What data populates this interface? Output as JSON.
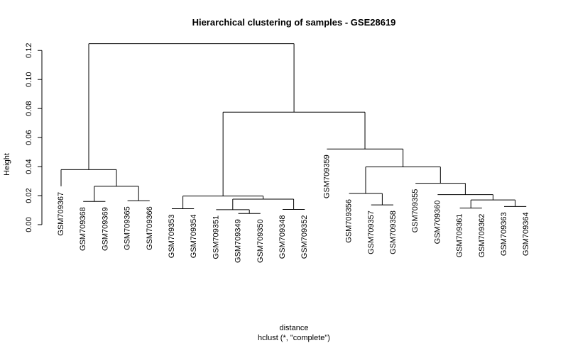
{
  "chart_data": {
    "type": "dendrogram",
    "title": "Hierarchical clustering of samples - GSE28619",
    "ylabel": "Height",
    "xlabel": "distance",
    "sublabel": "hclust (*, \"complete\")",
    "ylim": [
      0,
      0.13
    ],
    "yticks": [
      0.0,
      0.02,
      0.04,
      0.06,
      0.08,
      0.1,
      0.12
    ],
    "ytick_labels": [
      "0.00",
      "0.02",
      "0.04",
      "0.06",
      "0.08",
      "0.10",
      "0.12"
    ],
    "leaves": [
      "GSM709367",
      "GSM709368",
      "GSM709369",
      "GSM709365",
      "GSM709366",
      "GSM709353",
      "GSM709354",
      "GSM709351",
      "GSM709349",
      "GSM709350",
      "GSM709348",
      "GSM709352",
      "GSM709359",
      "GSM709356",
      "GSM709357",
      "GSM709358",
      "GSM709355",
      "GSM709360",
      "GSM709361",
      "GSM709362",
      "GSM709363",
      "GSM709364"
    ],
    "leaf_heights": [
      0.0264,
      0.016,
      0.016,
      0.0165,
      0.0165,
      0.011,
      0.011,
      0.0103,
      0.0077,
      0.0077,
      0.0105,
      0.0105,
      0.0521,
      0.0215,
      0.0136,
      0.0136,
      0.0285,
      0.0207,
      0.0114,
      0.0114,
      0.0125,
      0.0125
    ],
    "merges": [
      {
        "height": 0.016,
        "children": [
          "leaf:1",
          "leaf:2"
        ]
      },
      {
        "height": 0.0165,
        "children": [
          "leaf:3",
          "leaf:4"
        ]
      },
      {
        "height": 0.0264,
        "children": [
          "merge:0",
          "merge:1"
        ]
      },
      {
        "height": 0.0379,
        "children": [
          "leaf:0",
          "merge:2"
        ]
      },
      {
        "height": 0.011,
        "children": [
          "leaf:5",
          "leaf:6"
        ]
      },
      {
        "height": 0.0077,
        "children": [
          "leaf:8",
          "leaf:9"
        ]
      },
      {
        "height": 0.0103,
        "children": [
          "leaf:7",
          "merge:5"
        ]
      },
      {
        "height": 0.0105,
        "children": [
          "leaf:10",
          "leaf:11"
        ]
      },
      {
        "height": 0.0176,
        "children": [
          "merge:6",
          "merge:7"
        ]
      },
      {
        "height": 0.0197,
        "children": [
          "merge:4",
          "merge:8"
        ]
      },
      {
        "height": 0.0136,
        "children": [
          "leaf:14",
          "leaf:15"
        ]
      },
      {
        "height": 0.0215,
        "children": [
          "leaf:13",
          "merge:10"
        ]
      },
      {
        "height": 0.0114,
        "children": [
          "leaf:18",
          "leaf:19"
        ]
      },
      {
        "height": 0.0125,
        "children": [
          "leaf:20",
          "leaf:21"
        ]
      },
      {
        "height": 0.017,
        "children": [
          "merge:12",
          "merge:13"
        ]
      },
      {
        "height": 0.0207,
        "children": [
          "leaf:17",
          "merge:14"
        ]
      },
      {
        "height": 0.0285,
        "children": [
          "leaf:16",
          "merge:15"
        ]
      },
      {
        "height": 0.0398,
        "children": [
          "merge:11",
          "merge:16"
        ]
      },
      {
        "height": 0.0521,
        "children": [
          "leaf:12",
          "merge:17"
        ]
      },
      {
        "height": 0.0775,
        "children": [
          "merge:9",
          "merge:18"
        ]
      },
      {
        "height": 0.1247,
        "children": [
          "merge:3",
          "merge:19"
        ]
      }
    ]
  }
}
